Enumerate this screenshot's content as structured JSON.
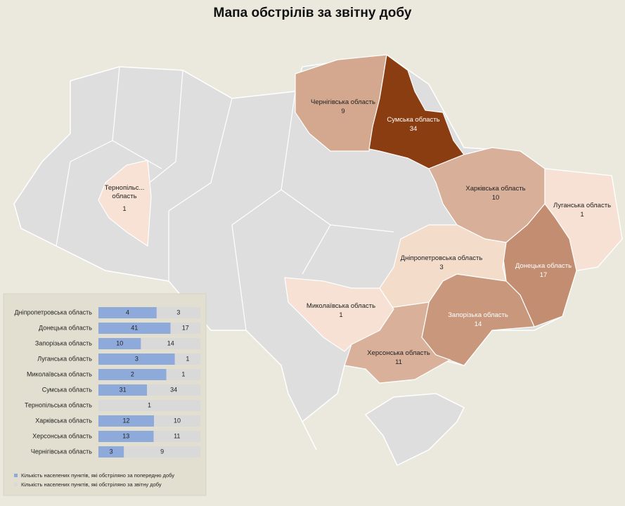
{
  "title": "Мапа обстрілів за звітну добу",
  "map": {
    "regions": [
      {
        "name": "Чернігівська область",
        "value": 9,
        "color": "#d4a88f",
        "text_color": "#222222"
      },
      {
        "name": "Сумська область",
        "value": 34,
        "color": "#8a3d10",
        "text_color": "#ffffff"
      },
      {
        "name": "Харківська область",
        "value": 10,
        "color": "#d8b09a",
        "text_color": "#222222"
      },
      {
        "name": "Луганська область",
        "value": 1,
        "color": "#f6e1d4",
        "text_color": "#222222"
      },
      {
        "name": "Донецька область",
        "value": 17,
        "color": "#c38d71",
        "text_color": "#ffffff"
      },
      {
        "name": "Дніпропетровська область",
        "value": 3,
        "color": "#f4dccb",
        "text_color": "#222222"
      },
      {
        "name": "Запорізька область",
        "value": 14,
        "color": "#c8977c",
        "text_color": "#ffffff"
      },
      {
        "name": "Херсонська область",
        "value": 11,
        "color": "#d9b19b",
        "text_color": "#222222"
      },
      {
        "name": "Миколаївська область",
        "value": 1,
        "color": "#f6e1d4",
        "text_color": "#222222"
      },
      {
        "name": "Тернопільс... область",
        "value": 1,
        "color": "#f8e2d5",
        "text_color": "#222222"
      }
    ]
  },
  "chart_data": {
    "type": "bar",
    "orientation": "horizontal",
    "stacking": "percent",
    "categories": [
      "Дніпропетровська область",
      "Донецька область",
      "Запорізька область",
      "Луганська область",
      "Миколаївська область",
      "Сумська область",
      "Тернопільська область",
      "Харківська область",
      "Херсонська область",
      "Чернігівська область"
    ],
    "series": [
      {
        "name": "Кількість населених пунктів, які обстріляно за попередню добу",
        "color": "#8eaadb",
        "values": [
          4,
          41,
          10,
          3,
          2,
          31,
          null,
          12,
          13,
          3
        ]
      },
      {
        "name": "Кількість населених пунктів, які обстріляно за звітну добу",
        "color": "#d9d9d9",
        "values": [
          3,
          17,
          14,
          1,
          1,
          34,
          1,
          10,
          11,
          9
        ]
      }
    ]
  }
}
